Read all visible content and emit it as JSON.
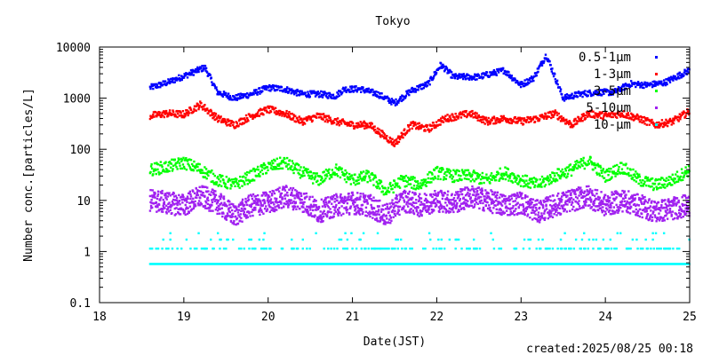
{
  "chart_data": {
    "type": "scatter",
    "title": "Tokyo",
    "xlabel": "Date(JST)",
    "ylabel": "Number conc.[particles/L]",
    "footer": "created:2025/08/25 00:18",
    "xlim": [
      18,
      25
    ],
    "ylim": [
      0.1,
      10000
    ],
    "y_scale": "log",
    "x_ticks": [
      "18",
      "19",
      "20",
      "21",
      "22",
      "23",
      "24",
      "25"
    ],
    "y_ticks": [
      "10000",
      "1000",
      "100",
      "10",
      "1",
      "0.1"
    ],
    "grid": false,
    "legend_position": "top-right",
    "series": [
      {
        "name": "0.5-1μm",
        "color": "#0000ff",
        "x": [
          18.6,
          18.8,
          19.0,
          19.25,
          19.4,
          19.6,
          19.8,
          20.0,
          20.2,
          20.4,
          20.6,
          20.8,
          20.9,
          21.1,
          21.3,
          21.5,
          21.7,
          21.9,
          22.05,
          22.2,
          22.5,
          22.8,
          23.0,
          23.15,
          23.3,
          23.5,
          23.7,
          23.9,
          24.1,
          24.3,
          24.5,
          24.7,
          25.0
        ],
        "values": [
          1600,
          2000,
          2700,
          4000,
          1300,
          1000,
          1200,
          1600,
          1500,
          1200,
          1200,
          1100,
          1500,
          1500,
          1200,
          800,
          1400,
          1900,
          4500,
          2600,
          2600,
          3500,
          1800,
          2500,
          7000,
          1000,
          1200,
          1300,
          1300,
          1900,
          1800,
          2000,
          3500
        ]
      },
      {
        "name": "1-3μm",
        "color": "#ff0000",
        "x": [
          18.6,
          18.8,
          19.0,
          19.2,
          19.4,
          19.6,
          19.8,
          20.0,
          20.2,
          20.4,
          20.6,
          20.8,
          21.0,
          21.2,
          21.5,
          21.7,
          21.9,
          22.1,
          22.4,
          22.6,
          22.8,
          23.0,
          23.2,
          23.4,
          23.6,
          23.8,
          24.0,
          24.2,
          24.4,
          24.6,
          24.8,
          25.0
        ],
        "values": [
          450,
          500,
          480,
          750,
          400,
          300,
          450,
          600,
          500,
          350,
          450,
          350,
          300,
          300,
          130,
          300,
          250,
          400,
          500,
          350,
          400,
          350,
          400,
          500,
          300,
          500,
          450,
          500,
          400,
          300,
          350,
          550
        ]
      },
      {
        "name": "3-5μm",
        "color": "#00ff00",
        "x": [
          18.6,
          18.8,
          19.0,
          19.2,
          19.4,
          19.6,
          19.8,
          20.0,
          20.2,
          20.4,
          20.6,
          20.8,
          21.0,
          21.2,
          21.4,
          21.6,
          21.8,
          22.0,
          22.2,
          22.4,
          22.6,
          22.8,
          23.0,
          23.2,
          23.4,
          23.6,
          23.8,
          24.0,
          24.2,
          24.4,
          24.6,
          24.8,
          25.0
        ],
        "values": [
          40,
          45,
          55,
          40,
          25,
          20,
          30,
          45,
          55,
          35,
          25,
          40,
          25,
          30,
          15,
          25,
          20,
          35,
          30,
          30,
          25,
          35,
          25,
          20,
          30,
          40,
          60,
          30,
          45,
          25,
          20,
          25,
          40
        ]
      },
      {
        "name": "5-10μm",
        "color": "#a020f0",
        "x": [
          18.6,
          18.8,
          19.0,
          19.2,
          19.4,
          19.6,
          19.8,
          20.0,
          20.2,
          20.4,
          20.6,
          20.8,
          21.0,
          21.2,
          21.4,
          21.6,
          21.8,
          22.0,
          22.2,
          22.4,
          22.6,
          22.8,
          23.0,
          23.2,
          23.4,
          23.6,
          23.8,
          24.0,
          24.2,
          24.4,
          24.6,
          24.8,
          25.0
        ],
        "values": [
          10,
          9,
          8,
          12,
          9,
          5,
          8,
          9,
          12,
          10,
          6,
          8,
          9,
          8,
          5,
          10,
          8,
          10,
          9,
          12,
          10,
          8,
          9,
          6,
          8,
          10,
          12,
          8,
          10,
          8,
          6,
          7,
          8
        ]
      },
      {
        "name": "10-μm",
        "color": "#00ffff",
        "x": [
          18.6,
          19.0,
          19.5,
          20.0,
          20.5,
          21.0,
          21.5,
          22.0,
          22.5,
          23.0,
          23.5,
          24.0,
          24.5,
          25.0
        ],
        "values": [
          0.57,
          0.57,
          0.57,
          0.57,
          0.57,
          0.57,
          0.57,
          0.57,
          0.57,
          0.57,
          0.57,
          0.57,
          0.57,
          0.57
        ]
      }
    ]
  }
}
